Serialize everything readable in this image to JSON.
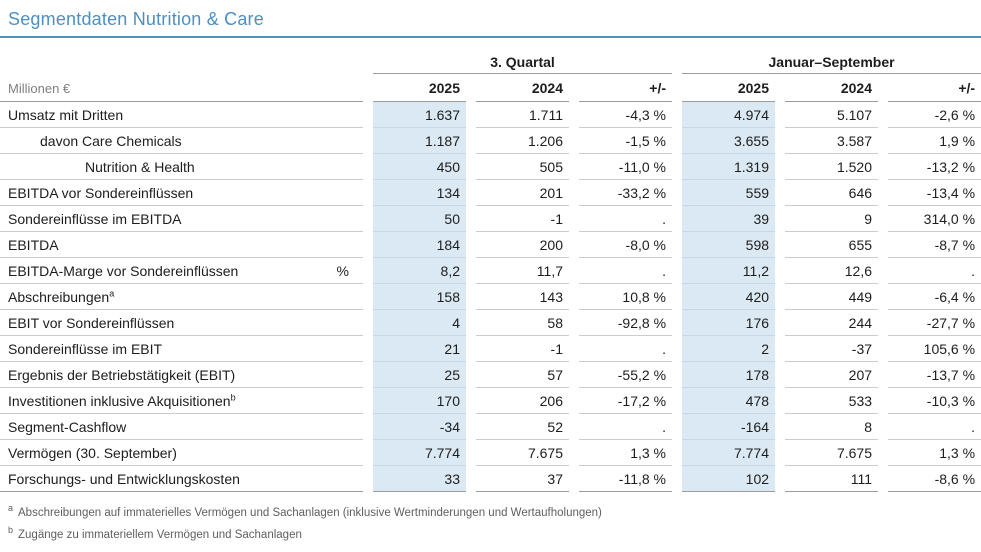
{
  "title": "Segmentdaten Nutrition & Care",
  "colors": {
    "accent": "#4a90c4",
    "highlight": "#dbe9f4",
    "hlline": "#c4d8e8",
    "rowline": "#cccccc",
    "hdrline": "#9c9c9c",
    "text": "#1d1d1b",
    "muted": "#7f7f7f",
    "footnote": "#5f5f5f"
  },
  "table": {
    "unit_label": "Millionen €",
    "groups": [
      {
        "label": "3. Quartal"
      },
      {
        "label": "Januar–September"
      }
    ],
    "col_headers": [
      "2025",
      "2024",
      "+/-"
    ],
    "rows": [
      {
        "label": "Umsatz mit Dritten",
        "sup": "",
        "indent": 0,
        "unit": "",
        "q3_2025": "1.637",
        "q3_2024": "1.711",
        "q3_chg": "-4,3 %",
        "ys_2025": "4.974",
        "ys_2024": "5.107",
        "ys_chg": "-2,6 %"
      },
      {
        "label": "davon Care Chemicals",
        "sup": "",
        "indent": 1,
        "unit": "",
        "q3_2025": "1.187",
        "q3_2024": "1.206",
        "q3_chg": "-1,5 %",
        "ys_2025": "3.655",
        "ys_2024": "3.587",
        "ys_chg": "1,9 %"
      },
      {
        "label": "Nutrition & Health",
        "sup": "",
        "indent": 2,
        "unit": "",
        "q3_2025": "450",
        "q3_2024": "505",
        "q3_chg": "-11,0 %",
        "ys_2025": "1.319",
        "ys_2024": "1.520",
        "ys_chg": "-13,2 %"
      },
      {
        "label": "EBITDA vor Sondereinflüssen",
        "sup": "",
        "indent": 0,
        "unit": "",
        "q3_2025": "134",
        "q3_2024": "201",
        "q3_chg": "-33,2 %",
        "ys_2025": "559",
        "ys_2024": "646",
        "ys_chg": "-13,4 %"
      },
      {
        "label": "Sondereinflüsse im EBITDA",
        "sup": "",
        "indent": 0,
        "unit": "",
        "q3_2025": "50",
        "q3_2024": "-1",
        "q3_chg": ".",
        "ys_2025": "39",
        "ys_2024": "9",
        "ys_chg": "314,0 %"
      },
      {
        "label": "EBITDA",
        "sup": "",
        "indent": 0,
        "unit": "",
        "q3_2025": "184",
        "q3_2024": "200",
        "q3_chg": "-8,0 %",
        "ys_2025": "598",
        "ys_2024": "655",
        "ys_chg": "-8,7 %"
      },
      {
        "label": "EBITDA-Marge vor Sondereinflüssen",
        "sup": "",
        "indent": 0,
        "unit": "%",
        "q3_2025": "8,2",
        "q3_2024": "11,7",
        "q3_chg": ".",
        "ys_2025": "11,2",
        "ys_2024": "12,6",
        "ys_chg": "."
      },
      {
        "label": "Abschreibungen",
        "sup": "a",
        "indent": 0,
        "unit": "",
        "q3_2025": "158",
        "q3_2024": "143",
        "q3_chg": "10,8 %",
        "ys_2025": "420",
        "ys_2024": "449",
        "ys_chg": "-6,4 %"
      },
      {
        "label": "EBIT vor Sondereinflüssen",
        "sup": "",
        "indent": 0,
        "unit": "",
        "q3_2025": "4",
        "q3_2024": "58",
        "q3_chg": "-92,8 %",
        "ys_2025": "176",
        "ys_2024": "244",
        "ys_chg": "-27,7 %"
      },
      {
        "label": "Sondereinflüsse im EBIT",
        "sup": "",
        "indent": 0,
        "unit": "",
        "q3_2025": "21",
        "q3_2024": "-1",
        "q3_chg": ".",
        "ys_2025": "2",
        "ys_2024": "-37",
        "ys_chg": "105,6 %"
      },
      {
        "label": "Ergebnis der Betriebstätigkeit (EBIT)",
        "sup": "",
        "indent": 0,
        "unit": "",
        "q3_2025": "25",
        "q3_2024": "57",
        "q3_chg": "-55,2 %",
        "ys_2025": "178",
        "ys_2024": "207",
        "ys_chg": "-13,7 %"
      },
      {
        "label": "Investitionen inklusive Akquisitionen",
        "sup": "b",
        "indent": 0,
        "unit": "",
        "q3_2025": "170",
        "q3_2024": "206",
        "q3_chg": "-17,2 %",
        "ys_2025": "478",
        "ys_2024": "533",
        "ys_chg": "-10,3 %"
      },
      {
        "label": "Segment-Cashflow",
        "sup": "",
        "indent": 0,
        "unit": "",
        "q3_2025": "-34",
        "q3_2024": "52",
        "q3_chg": ".",
        "ys_2025": "-164",
        "ys_2024": "8",
        "ys_chg": "."
      },
      {
        "label": "Vermögen (30. September)",
        "sup": "",
        "indent": 0,
        "unit": "",
        "q3_2025": "7.774",
        "q3_2024": "7.675",
        "q3_chg": "1,3 %",
        "ys_2025": "7.774",
        "ys_2024": "7.675",
        "ys_chg": "1,3 %"
      },
      {
        "label": "Forschungs- und Entwicklungskosten",
        "sup": "",
        "indent": 0,
        "unit": "",
        "q3_2025": "33",
        "q3_2024": "37",
        "q3_chg": "-11,8 %",
        "ys_2025": "102",
        "ys_2024": "111",
        "ys_chg": "-8,6 %"
      }
    ]
  },
  "footnotes": [
    {
      "mark": "a",
      "text": "Abschreibungen auf immaterielles Vermögen und Sachanlagen (inklusive Wertminderungen und Wertaufholungen)"
    },
    {
      "mark": "b",
      "text": "Zugänge zu immateriellem Vermögen und Sachanlagen"
    }
  ]
}
